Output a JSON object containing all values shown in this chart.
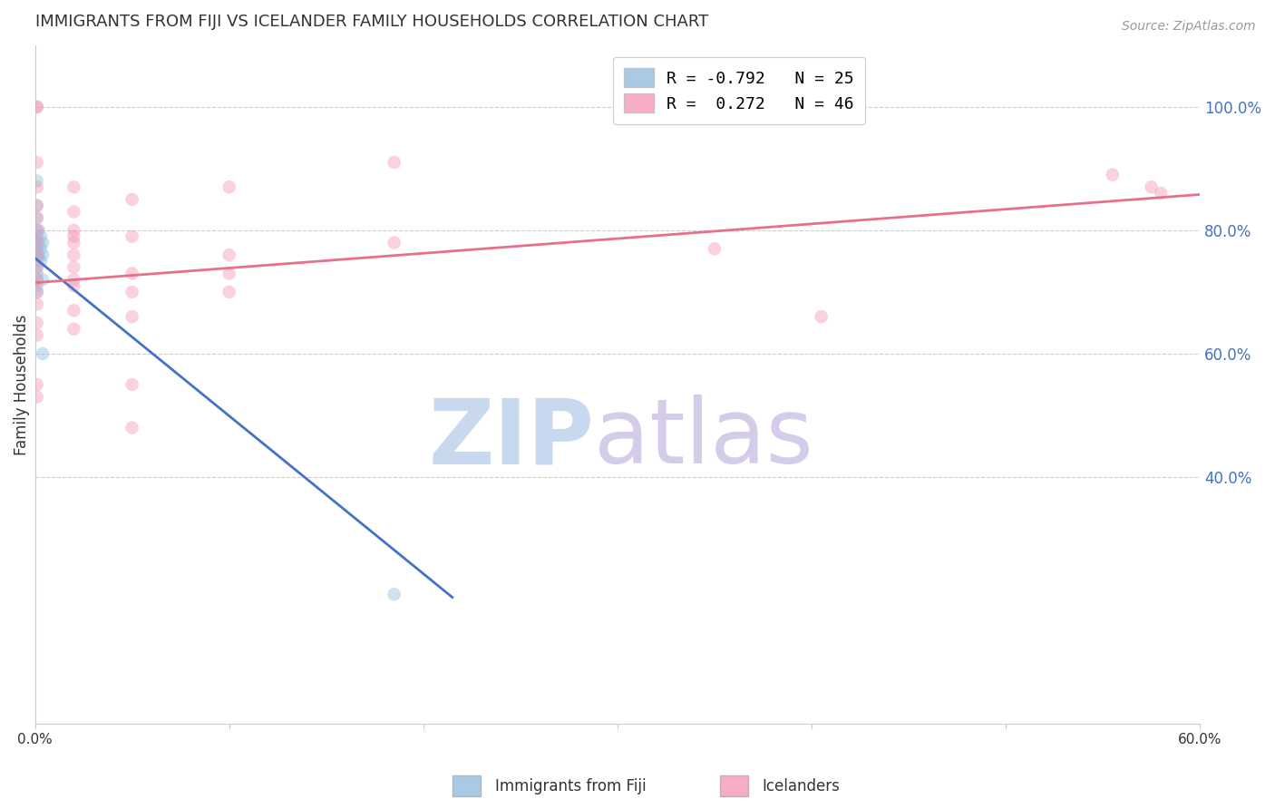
{
  "title": "IMMIGRANTS FROM FIJI VS ICELANDER FAMILY HOUSEHOLDS CORRELATION CHART",
  "source": "Source: ZipAtlas.com",
  "ylabel": "Family Households",
  "right_yticks": [
    0.4,
    0.6,
    0.8,
    1.0
  ],
  "blue_dots": [
    [
      0.001,
      0.88
    ],
    [
      0.001,
      0.84
    ],
    [
      0.001,
      0.82
    ],
    [
      0.001,
      0.8
    ],
    [
      0.001,
      0.79
    ],
    [
      0.001,
      0.78
    ],
    [
      0.001,
      0.77
    ],
    [
      0.001,
      0.76
    ],
    [
      0.001,
      0.75
    ],
    [
      0.001,
      0.74
    ],
    [
      0.001,
      0.73
    ],
    [
      0.001,
      0.72
    ],
    [
      0.001,
      0.71
    ],
    [
      0.001,
      0.7
    ],
    [
      0.002,
      0.8
    ],
    [
      0.002,
      0.78
    ],
    [
      0.002,
      0.76
    ],
    [
      0.003,
      0.79
    ],
    [
      0.003,
      0.77
    ],
    [
      0.003,
      0.75
    ],
    [
      0.004,
      0.78
    ],
    [
      0.004,
      0.76
    ],
    [
      0.004,
      0.72
    ],
    [
      0.004,
      0.6
    ],
    [
      0.185,
      0.21
    ]
  ],
  "pink_dots": [
    [
      0.001,
      1.0
    ],
    [
      0.001,
      1.0
    ],
    [
      0.001,
      0.91
    ],
    [
      0.001,
      0.87
    ],
    [
      0.001,
      0.84
    ],
    [
      0.001,
      0.82
    ],
    [
      0.001,
      0.8
    ],
    [
      0.001,
      0.78
    ],
    [
      0.001,
      0.76
    ],
    [
      0.001,
      0.74
    ],
    [
      0.001,
      0.72
    ],
    [
      0.001,
      0.7
    ],
    [
      0.001,
      0.68
    ],
    [
      0.001,
      0.65
    ],
    [
      0.001,
      0.63
    ],
    [
      0.001,
      0.55
    ],
    [
      0.001,
      0.53
    ],
    [
      0.02,
      0.87
    ],
    [
      0.02,
      0.83
    ],
    [
      0.02,
      0.8
    ],
    [
      0.02,
      0.79
    ],
    [
      0.02,
      0.78
    ],
    [
      0.02,
      0.76
    ],
    [
      0.02,
      0.74
    ],
    [
      0.02,
      0.72
    ],
    [
      0.02,
      0.71
    ],
    [
      0.02,
      0.67
    ],
    [
      0.02,
      0.64
    ],
    [
      0.05,
      0.85
    ],
    [
      0.05,
      0.79
    ],
    [
      0.05,
      0.73
    ],
    [
      0.05,
      0.7
    ],
    [
      0.05,
      0.66
    ],
    [
      0.05,
      0.55
    ],
    [
      0.05,
      0.48
    ],
    [
      0.1,
      0.87
    ],
    [
      0.1,
      0.76
    ],
    [
      0.1,
      0.73
    ],
    [
      0.1,
      0.7
    ],
    [
      0.185,
      0.91
    ],
    [
      0.185,
      0.78
    ],
    [
      0.35,
      0.77
    ],
    [
      0.405,
      0.66
    ],
    [
      0.555,
      0.89
    ],
    [
      0.575,
      0.87
    ],
    [
      0.58,
      0.86
    ]
  ],
  "blue_line": {
    "x0": 0.0,
    "y0": 0.755,
    "x1": 0.215,
    "y1": 0.205
  },
  "pink_line": {
    "x0": 0.0,
    "y0": 0.715,
    "x1": 0.6,
    "y1": 0.858
  },
  "xmin": 0.0,
  "xmax": 0.6,
  "ymin": 0.0,
  "ymax": 1.1,
  "background_color": "#ffffff",
  "dot_size": 110,
  "dot_alpha": 0.45,
  "blue_dot_color": "#92bfdf",
  "pink_dot_color": "#f599b4",
  "blue_line_color": "#4472c4",
  "pink_line_color": "#e8708a",
  "grid_color": "#cccccc",
  "title_color": "#333333",
  "right_axis_color": "#4472c4",
  "watermark_zip_color": "#c8d8ee",
  "watermark_atlas_color": "#d4cce8",
  "legend_blue_label": "R = -0.792   N = 25",
  "legend_pink_label": "R =  0.272   N = 46",
  "bottom_label_fiji": "Immigrants from Fiji",
  "bottom_label_iceland": "Icelanders"
}
